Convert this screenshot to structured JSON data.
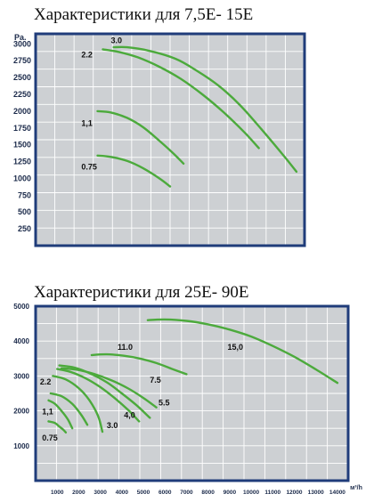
{
  "chart_data": [
    {
      "type": "line",
      "title": "Характеристики для 7,5E- 15E",
      "ylabel": "Pa.",
      "y_ticks": [
        "3000",
        "2750",
        "2500",
        "2250",
        "2000",
        "1750",
        "1500",
        "1250",
        "1000",
        "750",
        "500",
        "250"
      ],
      "y_tick_values": [
        3000,
        2750,
        2500,
        2250,
        2000,
        1750,
        1500,
        1250,
        1000,
        750,
        500,
        250
      ],
      "ylim": [
        0,
        3150
      ],
      "xlim": [
        0,
        1
      ],
      "x_note": "no x-axis tick labels printed",
      "background": "#cdd0d3",
      "frame_color": "#1f3c7a",
      "line_color": "#4caa3c",
      "grid": true,
      "series": [
        {
          "name": "3.0",
          "x": [
            0.29,
            0.34,
            0.42,
            0.52,
            0.6,
            0.68,
            0.76,
            0.84,
            0.92,
            0.97
          ],
          "y": [
            2950,
            2950,
            2900,
            2780,
            2600,
            2380,
            2090,
            1730,
            1350,
            1100
          ]
        },
        {
          "name": "2.2",
          "x": [
            0.25,
            0.31,
            0.38,
            0.46,
            0.54,
            0.62,
            0.7,
            0.78,
            0.83
          ],
          "y": [
            2920,
            2880,
            2800,
            2660,
            2480,
            2250,
            1980,
            1670,
            1450
          ]
        },
        {
          "name": "1,1",
          "x": [
            0.23,
            0.28,
            0.34,
            0.4,
            0.46,
            0.51,
            0.55
          ],
          "y": [
            2000,
            1980,
            1900,
            1760,
            1560,
            1380,
            1220
          ]
        },
        {
          "name": "0.75",
          "x": [
            0.23,
            0.28,
            0.34,
            0.4,
            0.46,
            0.5
          ],
          "y": [
            1340,
            1320,
            1260,
            1150,
            1000,
            880
          ]
        }
      ]
    },
    {
      "type": "line",
      "title": "Характеристики для 25E- 90E",
      "xlabel": "м³/h",
      "x_ticks": [
        "1000",
        "2000",
        "3000",
        "4000",
        "5000",
        "6000",
        "7000",
        "8000",
        "9000",
        "10000",
        "11000",
        "12000",
        "13000",
        "14000"
      ],
      "x_tick_values": [
        1000,
        2000,
        3000,
        4000,
        5000,
        6000,
        7000,
        8000,
        9000,
        10000,
        11000,
        12000,
        13000,
        14000
      ],
      "xlim": [
        0,
        14500
      ],
      "y_ticks": [
        "5000",
        "4000",
        "3000",
        "2000",
        "1000"
      ],
      "y_tick_values": [
        5000,
        4000,
        3000,
        2000,
        1000
      ],
      "ylim": [
        0,
        5000
      ],
      "background": "#cdd0d3",
      "frame_color": "#1f3c7a",
      "line_color": "#4caa3c",
      "grid": true,
      "series": [
        {
          "name": "15,0",
          "x": [
            5200,
            6000,
            7000,
            8000,
            9000,
            10000,
            11000,
            12000,
            13000,
            14000
          ],
          "y": [
            4600,
            4620,
            4580,
            4480,
            4330,
            4130,
            3860,
            3550,
            3190,
            2800
          ]
        },
        {
          "name": "11.0",
          "x": [
            2600,
            3300,
            4100,
            4900,
            5600,
            6300,
            7000
          ],
          "y": [
            3600,
            3620,
            3580,
            3490,
            3370,
            3210,
            3050
          ]
        },
        {
          "name": "7.5",
          "x": [
            1200,
            1900,
            2700,
            3500,
            4300,
            5000,
            5600
          ],
          "y": [
            3220,
            3180,
            3060,
            2880,
            2640,
            2370,
            2100
          ]
        },
        {
          "name": "5.5",
          "x": [
            1100,
            1800,
            2500,
            3300,
            4000,
            4700,
            5300
          ],
          "y": [
            3300,
            3240,
            3080,
            2820,
            2500,
            2150,
            1800
          ]
        },
        {
          "name": "4,0",
          "x": [
            1000,
            1600,
            2300,
            3000,
            3700,
            4300,
            4800
          ],
          "y": [
            3200,
            3120,
            2940,
            2680,
            2350,
            2020,
            1700
          ]
        },
        {
          "name": "3.0",
          "x": [
            800,
            1400,
            2000,
            2500,
            2900,
            3100
          ],
          "y": [
            3000,
            2900,
            2650,
            2300,
            1850,
            1400
          ]
        },
        {
          "name": "2.2",
          "x": [
            700,
            1200,
            1700,
            2100,
            2400
          ],
          "y": [
            2500,
            2420,
            2200,
            1900,
            1600
          ]
        },
        {
          "name": "1,1",
          "x": [
            600,
            900,
            1200,
            1500,
            1700
          ],
          "y": [
            2300,
            2200,
            2000,
            1750,
            1500
          ]
        },
        {
          "name": "0.75",
          "x": [
            600,
            900,
            1100,
            1300,
            1400
          ],
          "y": [
            1700,
            1650,
            1550,
            1450,
            1380
          ]
        }
      ]
    }
  ]
}
